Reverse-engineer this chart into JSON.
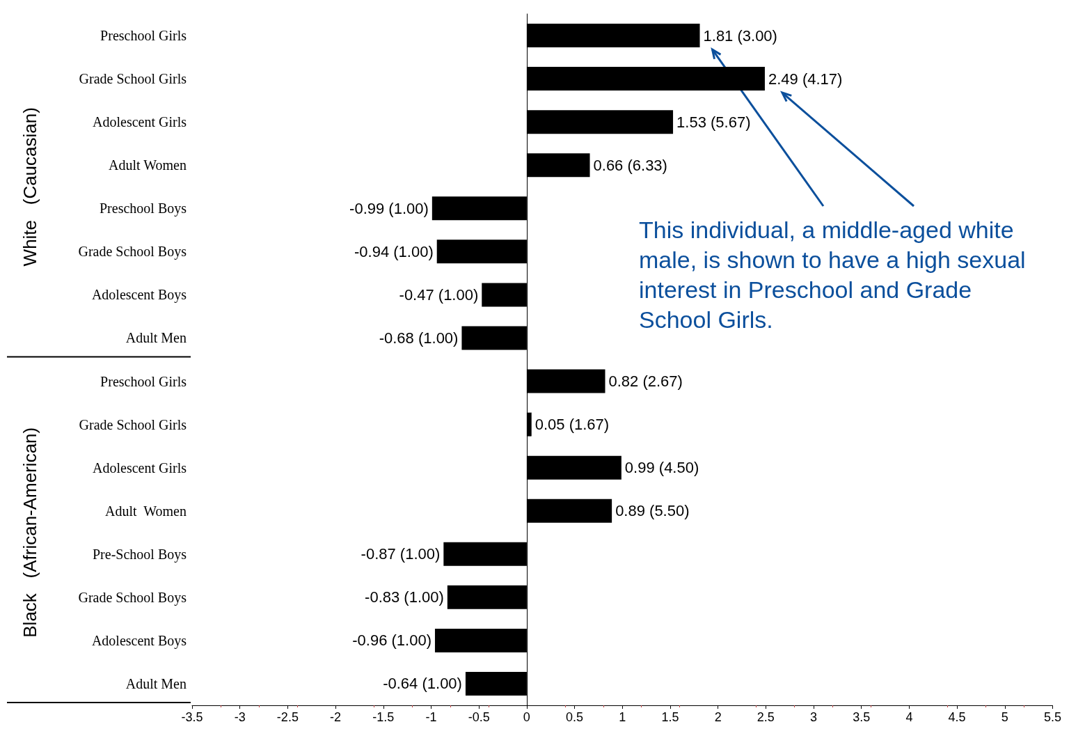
{
  "chart_data": {
    "type": "bar",
    "orientation": "horizontal",
    "categories": [
      "Preschool Girls",
      "Grade School Girls",
      "Adolescent Girls",
      "Adult Women",
      "Preschool Boys",
      "Grade School Boys",
      "Adolescent Boys",
      "Adult Men",
      "Preschool Girls",
      "Grade School Girls",
      "Adolescent Girls",
      "Adult  Women",
      "Pre-School Boys",
      "Grade School Boys",
      "Adolescent Boys",
      "Adult Men"
    ],
    "values": [
      1.81,
      2.49,
      1.53,
      0.66,
      -0.99,
      -0.94,
      -0.47,
      -0.68,
      0.82,
      0.05,
      0.99,
      0.89,
      -0.87,
      -0.83,
      -0.96,
      -0.64
    ],
    "value_labels": [
      "1.81 (3.00)",
      "2.49 (4.17)",
      "1.53 (5.67)",
      "0.66 (6.33)",
      "-0.99 (1.00)",
      "-0.94 (1.00)",
      "-0.47 (1.00)",
      "-0.68 (1.00)",
      "0.82 (2.67)",
      "0.05 (1.67)",
      "0.99 (4.50)",
      "0.89 (5.50)",
      "-0.87 (1.00)",
      "-0.83 (1.00)",
      "-0.96 (1.00)",
      "-0.64 (1.00)"
    ],
    "color": "#000000",
    "xlim": [
      -3.5,
      5.5
    ],
    "xticks": [
      -3.5,
      -3,
      -2.5,
      -2,
      -1.5,
      -1,
      -0.5,
      0,
      0.5,
      1,
      1.5,
      2,
      2.5,
      3,
      3.5,
      4,
      4.5,
      5,
      5.5
    ],
    "annotations": [
      "White   (Caucasian)",
      "Black   (African-American)",
      "This individual, a middle-aged white male, is shown to have a high sexual interest in Preschool and Grade School Girls."
    ]
  }
}
